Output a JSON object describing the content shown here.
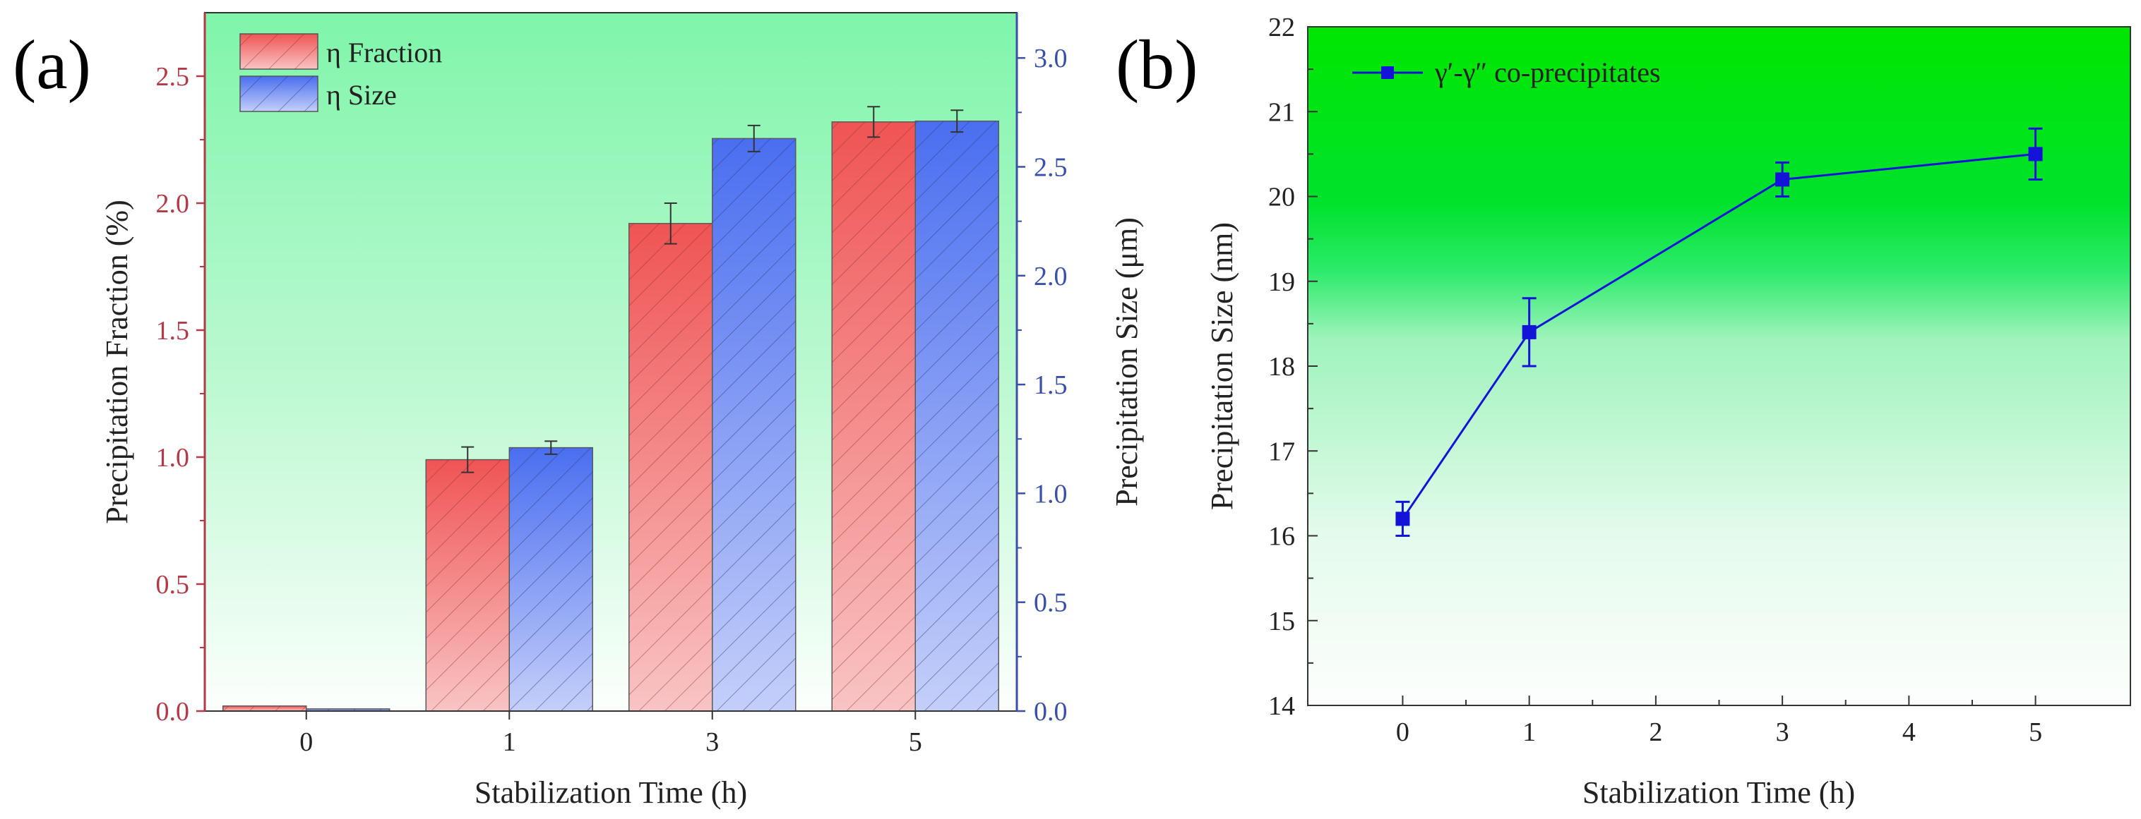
{
  "figure": {
    "panel_a_label": "(a)",
    "panel_b_label": "(b)"
  },
  "chart_data": [
    {
      "type": "bar",
      "panel": "(a)",
      "categories": [
        "0",
        "1",
        "3",
        "5"
      ],
      "xlabel": "Stabilization Time (h)",
      "ylabel_left": "Precipitation Fraction (%)",
      "ylabel_right": "Precipitation Size (μm)",
      "ylim_left": [
        0,
        2.75
      ],
      "ylim_right": [
        0,
        3.208
      ],
      "yticks_left": [
        "0.0",
        "0.5",
        "1.0",
        "1.5",
        "2.0",
        "2.5"
      ],
      "yticks_right": [
        "0.0",
        "0.5",
        "1.0",
        "1.5",
        "2.0",
        "2.5",
        "3.0"
      ],
      "legend_position": "top-left",
      "series": [
        {
          "name": "η Fraction",
          "axis": "left",
          "color": "#f05454",
          "values": [
            0.02,
            0.99,
            1.92,
            2.32
          ],
          "errors": [
            0,
            0.05,
            0.08,
            0.06
          ]
        },
        {
          "name": "η Size",
          "axis": "right",
          "color": "#4a6ef0",
          "values": [
            0.01,
            1.21,
            2.63,
            2.71
          ],
          "errors": [
            0,
            0.03,
            0.06,
            0.05
          ]
        }
      ],
      "colors": {
        "left_axis": "#b23a48",
        "right_axis": "#3a4fa8",
        "background": "#7ff5aa"
      }
    },
    {
      "type": "line",
      "panel": "(b)",
      "xlabel": "Stabilization Time (h)",
      "ylabel": "Precipitation Size (nm)",
      "xlim": [
        -0.75,
        5.75
      ],
      "ylim": [
        14,
        22
      ],
      "xticks": [
        "0",
        "1",
        "2",
        "3",
        "4",
        "5"
      ],
      "yticks": [
        "14",
        "15",
        "16",
        "17",
        "18",
        "19",
        "20",
        "21",
        "22"
      ],
      "legend_position": "top-left",
      "series": [
        {
          "name": "γ′-γ″ co-precipitates",
          "color": "#1414d8",
          "x": [
            0,
            1,
            3,
            5
          ],
          "y": [
            16.2,
            18.4,
            20.2,
            20.5
          ],
          "errors": [
            0.2,
            0.4,
            0.2,
            0.3
          ]
        }
      ],
      "colors": {
        "background_top": "#00e600"
      }
    }
  ]
}
